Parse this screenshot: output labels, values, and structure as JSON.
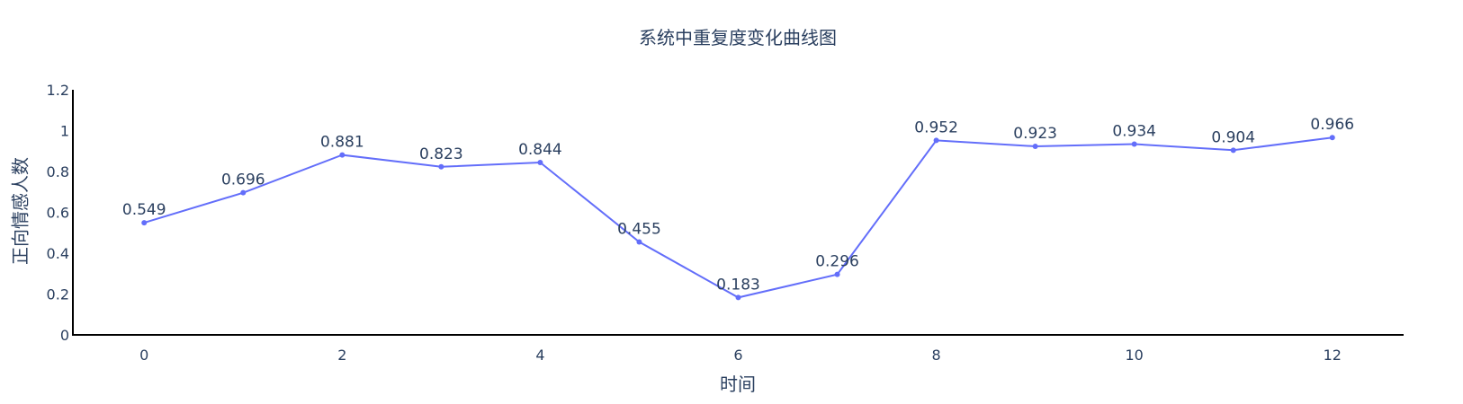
{
  "chart_data": {
    "type": "line",
    "title": "系统中重复度变化曲线图",
    "xlabel": "时间",
    "ylabel": "正向情感人数",
    "x": [
      0,
      1,
      2,
      3,
      4,
      5,
      6,
      7,
      8,
      9,
      10,
      11,
      12
    ],
    "values": [
      0.549,
      0.696,
      0.881,
      0.823,
      0.844,
      0.455,
      0.183,
      0.296,
      0.952,
      0.923,
      0.934,
      0.904,
      0.966
    ],
    "data_labels": [
      "0.549",
      "0.696",
      "0.881",
      "0.823",
      "0.844",
      "0.455",
      "0.183",
      "0.296",
      "0.952",
      "0.923",
      "0.934",
      "0.904",
      "0.966"
    ],
    "xticks": [
      "0",
      "2",
      "4",
      "6",
      "8",
      "10",
      "12"
    ],
    "xtick_values": [
      0,
      2,
      4,
      6,
      8,
      10,
      12
    ],
    "yticks": [
      "0",
      "0.2",
      "0.4",
      "0.6",
      "0.8",
      "1",
      "1.2"
    ],
    "ytick_values": [
      0,
      0.2,
      0.4,
      0.6,
      0.8,
      1,
      1.2
    ],
    "xlim": [
      -0.72,
      12.72
    ],
    "ylim": [
      0,
      1.2
    ],
    "grid": false,
    "legend": "none",
    "line_color": "#636efa",
    "text_color": "#2a3f5f"
  }
}
